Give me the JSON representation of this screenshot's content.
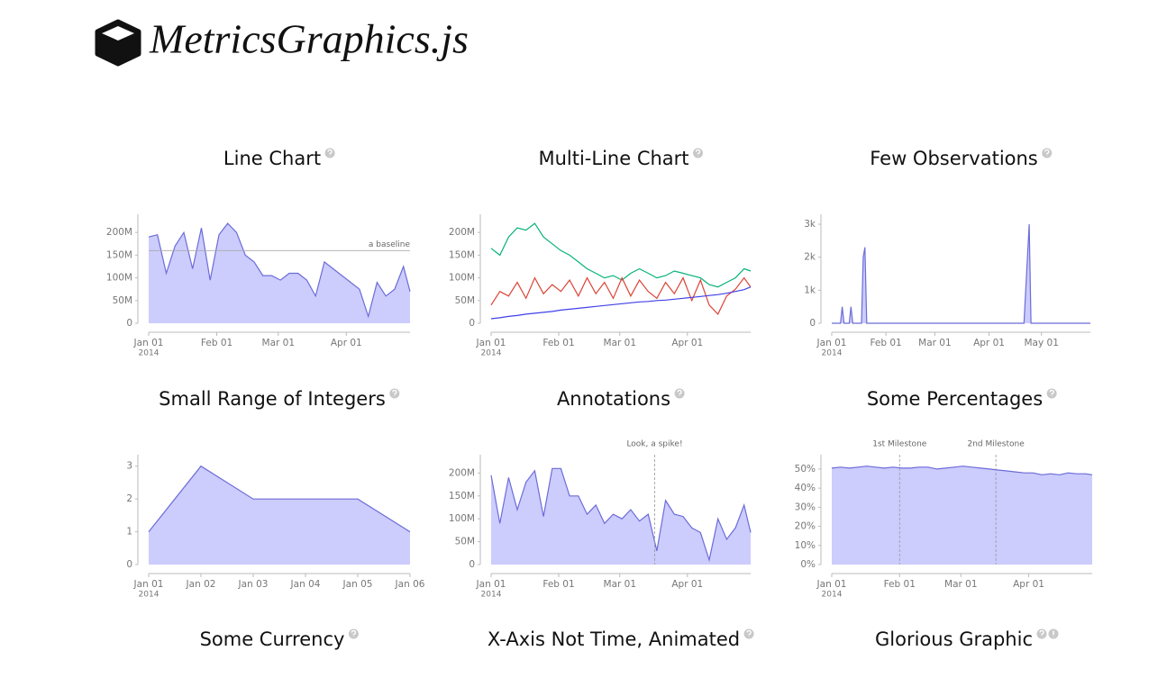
{
  "header": {
    "title": "MetricsGraphics.js"
  },
  "chart_data": [
    {
      "type": "line",
      "title": "Line Chart",
      "area": true,
      "color": "#6c6cd8",
      "fill": "#ccccfd",
      "x": [
        "2014-01-01",
        "2014-01-05",
        "2014-01-09",
        "2014-01-13",
        "2014-01-17",
        "2014-01-21",
        "2014-01-25",
        "2014-01-29",
        "2014-02-02",
        "2014-02-06",
        "2014-02-10",
        "2014-02-14",
        "2014-02-18",
        "2014-02-22",
        "2014-02-26",
        "2014-03-02",
        "2014-03-06",
        "2014-03-10",
        "2014-03-14",
        "2014-03-18",
        "2014-03-22",
        "2014-03-26",
        "2014-03-30",
        "2014-04-03",
        "2014-04-07",
        "2014-04-11",
        "2014-04-15",
        "2014-04-19",
        "2014-04-23",
        "2014-04-27",
        "2014-04-30"
      ],
      "values": [
        190000000,
        195000000,
        110000000,
        170000000,
        200000000,
        120000000,
        210000000,
        95000000,
        195000000,
        220000000,
        200000000,
        150000000,
        135000000,
        105000000,
        105000000,
        95000000,
        110000000,
        110000000,
        95000000,
        60000000,
        135000000,
        120000000,
        105000000,
        90000000,
        75000000,
        15000000,
        90000000,
        60000000,
        75000000,
        125000000,
        70000000
      ],
      "xlim": [
        "2014-01-01",
        "2014-04-30"
      ],
      "xticks": [
        {
          "value": "2014-01-01",
          "label": "Jan 01"
        },
        {
          "value": "2014-02-01",
          "label": "Feb 01"
        },
        {
          "value": "2014-03-01",
          "label": "Mar 01"
        },
        {
          "value": "2014-04-01",
          "label": "Apr 01"
        }
      ],
      "x_year_label": "2014",
      "ylim": [
        0,
        240000000
      ],
      "yticks": [
        0,
        {
          "value": 50000000,
          "label": "50M"
        },
        {
          "value": 100000000,
          "label": "100M"
        },
        {
          "value": 150000000,
          "label": "150M"
        },
        {
          "value": 200000000,
          "label": "200M"
        }
      ],
      "baseline": {
        "value": 160000000,
        "label": "a baseline"
      }
    },
    {
      "type": "line",
      "title": "Multi-Line Chart",
      "area": false,
      "x": [
        "2014-01-01",
        "2014-01-05",
        "2014-01-09",
        "2014-01-13",
        "2014-01-17",
        "2014-01-21",
        "2014-01-25",
        "2014-01-29",
        "2014-02-02",
        "2014-02-06",
        "2014-02-10",
        "2014-02-14",
        "2014-02-18",
        "2014-02-22",
        "2014-02-26",
        "2014-03-02",
        "2014-03-06",
        "2014-03-10",
        "2014-03-14",
        "2014-03-18",
        "2014-03-22",
        "2014-03-26",
        "2014-03-30",
        "2014-04-03",
        "2014-04-07",
        "2014-04-11",
        "2014-04-15",
        "2014-04-19",
        "2014-04-23",
        "2014-04-27",
        "2014-04-30"
      ],
      "series": [
        {
          "color": "#05b378",
          "values": [
            165000000,
            150000000,
            190000000,
            210000000,
            205000000,
            220000000,
            190000000,
            175000000,
            160000000,
            150000000,
            135000000,
            120000000,
            110000000,
            100000000,
            105000000,
            95000000,
            110000000,
            120000000,
            110000000,
            100000000,
            105000000,
            115000000,
            110000000,
            105000000,
            100000000,
            85000000,
            80000000,
            90000000,
            100000000,
            120000000,
            115000000
          ]
        },
        {
          "color": "#db4437",
          "values": [
            40000000,
            70000000,
            60000000,
            90000000,
            55000000,
            100000000,
            65000000,
            85000000,
            70000000,
            95000000,
            60000000,
            100000000,
            65000000,
            90000000,
            55000000,
            100000000,
            60000000,
            95000000,
            70000000,
            55000000,
            90000000,
            65000000,
            100000000,
            50000000,
            95000000,
            40000000,
            20000000,
            60000000,
            75000000,
            100000000,
            80000000
          ]
        },
        {
          "color": "#4040e8",
          "values": [
            10000000,
            12000000,
            15000000,
            17000000,
            20000000,
            22000000,
            24000000,
            26000000,
            29000000,
            31000000,
            33000000,
            35000000,
            37000000,
            39000000,
            41000000,
            43000000,
            45000000,
            47000000,
            48000000,
            50000000,
            51000000,
            53000000,
            55000000,
            57000000,
            59000000,
            61000000,
            63000000,
            66000000,
            70000000,
            74000000,
            80000000
          ]
        }
      ],
      "xlim": [
        "2014-01-01",
        "2014-04-30"
      ],
      "xticks": [
        {
          "value": "2014-01-01",
          "label": "Jan 01"
        },
        {
          "value": "2014-02-01",
          "label": "Feb 01"
        },
        {
          "value": "2014-03-01",
          "label": "Mar 01"
        },
        {
          "value": "2014-04-01",
          "label": "Apr 01"
        }
      ],
      "x_year_label": "2014",
      "ylim": [
        0,
        240000000
      ],
      "yticks": [
        0,
        {
          "value": 50000000,
          "label": "50M"
        },
        {
          "value": 100000000,
          "label": "100M"
        },
        {
          "value": 150000000,
          "label": "150M"
        },
        {
          "value": 200000000,
          "label": "200M"
        }
      ]
    },
    {
      "type": "line",
      "title": "Few Observations",
      "area": true,
      "color": "#6c6cd8",
      "fill": "#ccccfd",
      "x": [
        "2014-01-01",
        "2014-01-06",
        "2014-01-07",
        "2014-01-08",
        "2014-01-11",
        "2014-01-12",
        "2014-01-13",
        "2014-01-18",
        "2014-01-19",
        "2014-01-20",
        "2014-01-21",
        "2014-04-21",
        "2014-04-24",
        "2014-04-25",
        "2014-05-29"
      ],
      "values": [
        0,
        0,
        500,
        0,
        0,
        500,
        0,
        0,
        2000,
        2300,
        0,
        0,
        3000,
        0,
        0
      ],
      "xlim": [
        "2014-01-01",
        "2014-05-29"
      ],
      "xticks": [
        {
          "value": "2014-01-01",
          "label": "Jan 01"
        },
        {
          "value": "2014-02-01",
          "label": "Feb 01"
        },
        {
          "value": "2014-03-01",
          "label": "Mar 01"
        },
        {
          "value": "2014-04-01",
          "label": "Apr 01"
        },
        {
          "value": "2014-05-01",
          "label": "May 01"
        }
      ],
      "x_year_label": "2014",
      "ylim": [
        0,
        3300
      ],
      "yticks": [
        0,
        {
          "value": 1000,
          "label": "1k"
        },
        {
          "value": 2000,
          "label": "2k"
        },
        {
          "value": 3000,
          "label": "3k"
        }
      ]
    },
    {
      "type": "line",
      "title": "Small Range of Integers",
      "area": true,
      "color": "#6c6cd8",
      "fill": "#ccccfd",
      "categories": [
        "Jan 01",
        "Jan 02",
        "Jan 03",
        "Jan 04",
        "Jan 05",
        "Jan 06"
      ],
      "values": [
        1,
        3,
        2,
        2,
        2,
        1
      ],
      "x_year_label": "2014",
      "ylim": [
        0,
        3.35
      ],
      "yticks": [
        0,
        1,
        2,
        3
      ]
    },
    {
      "type": "line",
      "title": "Annotations",
      "area": true,
      "color": "#6c6cd8",
      "fill": "#ccccfd",
      "x": [
        "2014-01-01",
        "2014-01-05",
        "2014-01-09",
        "2014-01-13",
        "2014-01-17",
        "2014-01-21",
        "2014-01-25",
        "2014-01-29",
        "2014-02-02",
        "2014-02-06",
        "2014-02-10",
        "2014-02-14",
        "2014-02-18",
        "2014-02-22",
        "2014-02-26",
        "2014-03-02",
        "2014-03-06",
        "2014-03-10",
        "2014-03-14",
        "2014-03-18",
        "2014-03-22",
        "2014-03-26",
        "2014-03-30",
        "2014-04-03",
        "2014-04-07",
        "2014-04-11",
        "2014-04-15",
        "2014-04-19",
        "2014-04-23",
        "2014-04-27",
        "2014-04-30"
      ],
      "values": [
        195000000,
        90000000,
        190000000,
        120000000,
        180000000,
        205000000,
        105000000,
        210000000,
        210000000,
        150000000,
        150000000,
        110000000,
        130000000,
        90000000,
        110000000,
        100000000,
        120000000,
        95000000,
        110000000,
        30000000,
        140000000,
        110000000,
        105000000,
        80000000,
        70000000,
        10000000,
        100000000,
        55000000,
        80000000,
        130000000,
        70000000
      ],
      "xlim": [
        "2014-01-01",
        "2014-04-30"
      ],
      "xticks": [
        {
          "value": "2014-01-01",
          "label": "Jan 01"
        },
        {
          "value": "2014-02-01",
          "label": "Feb 01"
        },
        {
          "value": "2014-03-01",
          "label": "Mar 01"
        },
        {
          "value": "2014-04-01",
          "label": "Apr 01"
        }
      ],
      "x_year_label": "2014",
      "ylim": [
        0,
        240000000
      ],
      "yticks": [
        0,
        {
          "value": 50000000,
          "label": "50M"
        },
        {
          "value": 100000000,
          "label": "100M"
        },
        {
          "value": 150000000,
          "label": "150M"
        },
        {
          "value": 200000000,
          "label": "200M"
        }
      ],
      "markers": [
        {
          "x": "2014-03-17",
          "label": "Look, a spike!"
        }
      ]
    },
    {
      "type": "line",
      "title": "Some Percentages",
      "area": true,
      "color": "#6c6cd8",
      "fill": "#ccccfd",
      "x": [
        "2014-01-01",
        "2014-01-05",
        "2014-01-09",
        "2014-01-13",
        "2014-01-17",
        "2014-01-21",
        "2014-01-25",
        "2014-01-29",
        "2014-02-02",
        "2014-02-06",
        "2014-02-10",
        "2014-02-14",
        "2014-02-18",
        "2014-02-22",
        "2014-02-26",
        "2014-03-02",
        "2014-03-06",
        "2014-03-10",
        "2014-03-14",
        "2014-03-18",
        "2014-03-22",
        "2014-03-26",
        "2014-03-30",
        "2014-04-03",
        "2014-04-07",
        "2014-04-11",
        "2014-04-15",
        "2014-04-19",
        "2014-04-23",
        "2014-04-27",
        "2014-04-30"
      ],
      "values": [
        50.5,
        51,
        50.5,
        51,
        51.5,
        51,
        50.5,
        51,
        50.5,
        50.5,
        51,
        51,
        50,
        50.5,
        51,
        51.5,
        51,
        50.5,
        50,
        49.5,
        49,
        48.5,
        48,
        48,
        47,
        47.5,
        47,
        48,
        47.5,
        47.5,
        47
      ],
      "xlim": [
        "2014-01-01",
        "2014-04-30"
      ],
      "xticks": [
        {
          "value": "2014-01-01",
          "label": "Jan 01"
        },
        {
          "value": "2014-02-01",
          "label": "Feb 01"
        },
        {
          "value": "2014-03-01",
          "label": "Mar 01"
        },
        {
          "value": "2014-04-01",
          "label": "Apr 01"
        }
      ],
      "x_year_label": "2014",
      "ylim": [
        0,
        57.5
      ],
      "yticks": [
        {
          "value": 0,
          "label": "0%"
        },
        {
          "value": 10,
          "label": "10%"
        },
        {
          "value": 20,
          "label": "20%"
        },
        {
          "value": 30,
          "label": "30%"
        },
        {
          "value": 40,
          "label": "40%"
        },
        {
          "value": 50,
          "label": "50%"
        }
      ],
      "markers": [
        {
          "x": "2014-02-01",
          "label": "1st Milestone"
        },
        {
          "x": "2014-03-17",
          "label": "2nd Milestone"
        }
      ]
    }
  ],
  "more_charts": [
    {
      "title": "Some Currency"
    },
    {
      "title": "X-Axis Not Time, Animated"
    },
    {
      "title": "Glorious Graphic"
    }
  ]
}
